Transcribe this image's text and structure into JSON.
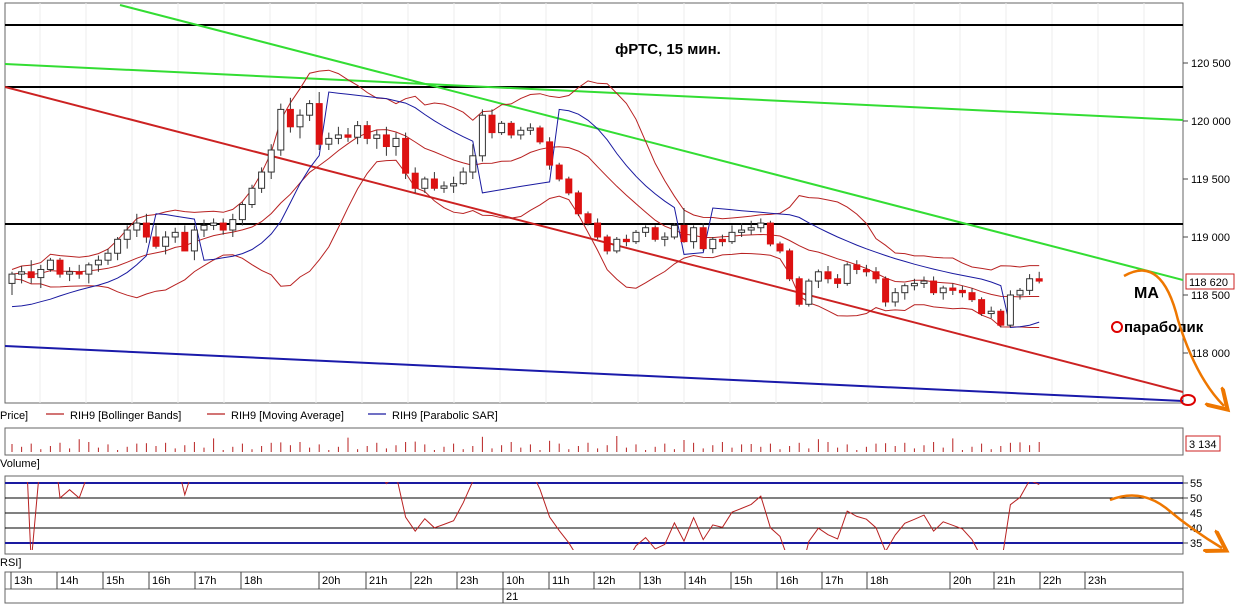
{
  "title": "фРТС,  15 мин.",
  "price_axis": {
    "ticks": [
      {
        "label": "120 500",
        "value": 120500
      },
      {
        "label": "120 000",
        "value": 120000
      },
      {
        "label": "119 500",
        "value": 119500
      },
      {
        "label": "119 000",
        "value": 119000
      },
      {
        "label": "118 500",
        "value": 118500
      },
      {
        "label": "118 000",
        "value": 118000
      }
    ],
    "current_label": "118 620",
    "current_value": 118620
  },
  "legend": {
    "price": "Price]",
    "bb": "RIH9 [Bollinger Bands]",
    "ma": "RIH9 [Moving Average]",
    "sar": "RIH9 [Parabolic SAR]"
  },
  "annotations": {
    "ma": "MA",
    "sar": "параболик"
  },
  "volume": {
    "label": "Volume]",
    "current_label": "3 134"
  },
  "rsi": {
    "label": "RSI]",
    "ticks": [
      {
        "label": "55",
        "value": 55
      },
      {
        "label": "50",
        "value": 50
      },
      {
        "label": "45",
        "value": 45
      },
      {
        "label": "40",
        "value": 40
      },
      {
        "label": "35",
        "value": 35
      }
    ]
  },
  "time_axis": {
    "hours": [
      "13h",
      "14h",
      "15h",
      "16h",
      "17h",
      "18h",
      "20h",
      "21h",
      "22h",
      "23h",
      "10h",
      "11h",
      "12h",
      "13h",
      "14h",
      "15h",
      "16h",
      "17h",
      "18h",
      "20h",
      "21h",
      "22h",
      "23h"
    ],
    "date_label": "21"
  },
  "colors": {
    "candle_up": "#ffffff",
    "candle_down": "#dd1111",
    "bollinger": "#b82222",
    "moving_average": "#b82222",
    "parabolic_sar": "#1a1aa0",
    "trend_green": "#33dd33",
    "trend_red": "#cc2222",
    "trend_blue": "#1a1aaa",
    "forecast": "#ee7700"
  },
  "chart_data": {
    "type": "candlestick",
    "title": "фРТС,  15 мин.",
    "y_range": [
      117600,
      121000
    ],
    "candles_ohlc": [
      [
        118600,
        118700,
        118500,
        118680
      ],
      [
        118680,
        118750,
        118600,
        118700
      ],
      [
        118700,
        118800,
        118600,
        118650
      ],
      [
        118650,
        118760,
        118560,
        118720
      ],
      [
        118720,
        118820,
        118700,
        118800
      ],
      [
        118800,
        118820,
        118650,
        118680
      ],
      [
        118680,
        118740,
        118620,
        118700
      ],
      [
        118700,
        118760,
        118640,
        118680
      ],
      [
        118680,
        118780,
        118600,
        118760
      ],
      [
        118760,
        118840,
        118700,
        118800
      ],
      [
        118800,
        118900,
        118760,
        118860
      ],
      [
        118860,
        119000,
        118800,
        118980
      ],
      [
        118980,
        119100,
        118900,
        119060
      ],
      [
        119060,
        119200,
        119000,
        119120
      ],
      [
        119120,
        119200,
        118950,
        119000
      ],
      [
        119000,
        119100,
        118900,
        118920
      ],
      [
        118920,
        119050,
        118850,
        119000
      ],
      [
        119000,
        119080,
        118950,
        119040
      ],
      [
        119040,
        119100,
        118900,
        118880
      ],
      [
        118880,
        119100,
        118800,
        119060
      ],
      [
        119060,
        119150,
        119000,
        119100
      ],
      [
        119100,
        119160,
        119060,
        119120
      ],
      [
        119120,
        119160,
        119020,
        119060
      ],
      [
        119060,
        119200,
        119000,
        119150
      ],
      [
        119150,
        119300,
        119100,
        119280
      ],
      [
        119280,
        119450,
        119250,
        119420
      ],
      [
        119420,
        119600,
        119380,
        119560
      ],
      [
        119560,
        119800,
        119500,
        119750
      ],
      [
        119750,
        120150,
        119700,
        120100
      ],
      [
        120100,
        120200,
        119900,
        119950
      ],
      [
        119950,
        120100,
        119850,
        120050
      ],
      [
        120050,
        120180,
        120000,
        120150
      ],
      [
        120150,
        120250,
        119750,
        119800
      ],
      [
        119800,
        119900,
        119750,
        119850
      ],
      [
        119850,
        119950,
        119800,
        119880
      ],
      [
        119880,
        119940,
        119820,
        119860
      ],
      [
        119860,
        120000,
        119800,
        119960
      ],
      [
        119960,
        120000,
        119800,
        119850
      ],
      [
        119850,
        119920,
        119760,
        119880
      ],
      [
        119880,
        119950,
        119700,
        119780
      ],
      [
        119780,
        119900,
        119700,
        119850
      ],
      [
        119850,
        119900,
        119500,
        119550
      ],
      [
        119550,
        119600,
        119380,
        119420
      ],
      [
        119420,
        119520,
        119380,
        119500
      ],
      [
        119500,
        119560,
        119400,
        119420
      ],
      [
        119420,
        119480,
        119380,
        119440
      ],
      [
        119440,
        119520,
        119380,
        119460
      ],
      [
        119460,
        119600,
        119450,
        119560
      ],
      [
        119560,
        119800,
        119500,
        119700
      ],
      [
        119700,
        120100,
        119650,
        120050
      ],
      [
        120050,
        120100,
        119850,
        119900
      ],
      [
        119900,
        120000,
        119880,
        119980
      ],
      [
        119980,
        120000,
        119850,
        119880
      ],
      [
        119880,
        119950,
        119840,
        119920
      ],
      [
        119920,
        119980,
        119880,
        119940
      ],
      [
        119940,
        119960,
        119800,
        119820
      ],
      [
        119820,
        119860,
        119580,
        119620
      ],
      [
        119620,
        119640,
        119480,
        119500
      ],
      [
        119500,
        119520,
        119360,
        119380
      ],
      [
        119380,
        119400,
        119180,
        119200
      ],
      [
        119200,
        119220,
        119100,
        119120
      ],
      [
        119120,
        119160,
        118980,
        119000
      ],
      [
        119000,
        119020,
        118850,
        118880
      ],
      [
        118880,
        119000,
        118860,
        118980
      ],
      [
        118980,
        119020,
        118920,
        118960
      ],
      [
        118960,
        119060,
        118940,
        119040
      ],
      [
        119040,
        119100,
        119000,
        119080
      ],
      [
        119080,
        119100,
        118960,
        118980
      ],
      [
        118980,
        119040,
        118920,
        119000
      ],
      [
        119000,
        119120,
        118980,
        119100
      ],
      [
        119100,
        119250,
        118950,
        118960
      ],
      [
        118960,
        119100,
        118900,
        119080
      ],
      [
        119080,
        119120,
        118880,
        118900
      ],
      [
        118900,
        119000,
        118860,
        118980
      ],
      [
        118980,
        119020,
        118920,
        118960
      ],
      [
        118960,
        119100,
        118940,
        119040
      ],
      [
        119040,
        119120,
        119000,
        119060
      ],
      [
        119060,
        119140,
        119020,
        119080
      ],
      [
        119080,
        119160,
        119040,
        119120
      ],
      [
        119120,
        119140,
        118920,
        118940
      ],
      [
        118940,
        118960,
        118860,
        118880
      ],
      [
        118880,
        118900,
        118620,
        118640
      ],
      [
        118640,
        118660,
        118400,
        118420
      ],
      [
        118420,
        118640,
        118400,
        118620
      ],
      [
        118620,
        118720,
        118560,
        118700
      ],
      [
        118700,
        118750,
        118600,
        118640
      ],
      [
        118640,
        118680,
        118560,
        118600
      ],
      [
        118600,
        118780,
        118580,
        118760
      ],
      [
        118760,
        118800,
        118680,
        118720
      ],
      [
        118720,
        118760,
        118660,
        118700
      ],
      [
        118700,
        118740,
        118600,
        118640
      ],
      [
        118640,
        118660,
        118400,
        118440
      ],
      [
        118440,
        118560,
        118400,
        118520
      ],
      [
        118520,
        118600,
        118460,
        118580
      ],
      [
        118580,
        118640,
        118540,
        118600
      ],
      [
        118600,
        118660,
        118560,
        118620
      ],
      [
        118620,
        118660,
        118500,
        118520
      ],
      [
        118520,
        118580,
        118460,
        118560
      ],
      [
        118560,
        118600,
        118500,
        118540
      ],
      [
        118540,
        118580,
        118480,
        118520
      ],
      [
        118520,
        118560,
        118440,
        118460
      ],
      [
        118460,
        118480,
        118320,
        118340
      ],
      [
        118340,
        118400,
        118300,
        118360
      ],
      [
        118360,
        118380,
        118220,
        118240
      ],
      [
        118240,
        118540,
        118220,
        118500
      ],
      [
        118500,
        118560,
        118460,
        118540
      ],
      [
        118540,
        118680,
        118500,
        118640
      ],
      [
        118640,
        118700,
        118600,
        118620
      ]
    ]
  }
}
